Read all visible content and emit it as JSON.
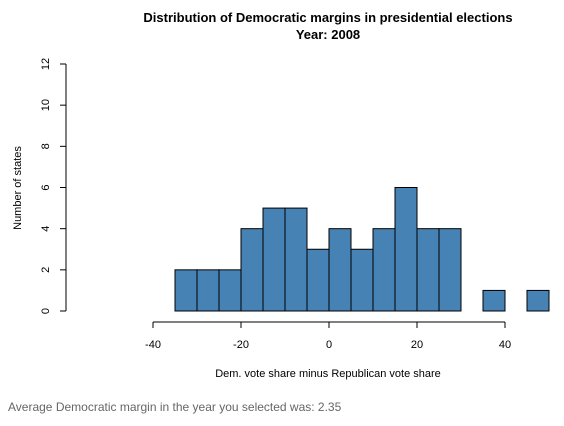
{
  "chart_data": {
    "type": "bar",
    "title": "Distribution of Democratic margins in presidential elections",
    "subtitle": "Year:  2008",
    "xlabel": "Dem. vote share minus Republican vote share",
    "ylabel": "Number of states",
    "xlim": [
      -40,
      50
    ],
    "ylim": [
      0,
      12
    ],
    "xticks": [
      -40,
      -20,
      0,
      20,
      40
    ],
    "yticks": [
      0,
      2,
      4,
      6,
      8,
      10,
      12
    ],
    "bin_width": 5,
    "bins": [
      {
        "start": -35,
        "end": -30,
        "count": 2
      },
      {
        "start": -30,
        "end": -25,
        "count": 2
      },
      {
        "start": -25,
        "end": -20,
        "count": 2
      },
      {
        "start": -20,
        "end": -15,
        "count": 4
      },
      {
        "start": -15,
        "end": -10,
        "count": 5
      },
      {
        "start": -10,
        "end": -5,
        "count": 5
      },
      {
        "start": -5,
        "end": 0,
        "count": 3
      },
      {
        "start": 0,
        "end": 5,
        "count": 4
      },
      {
        "start": 5,
        "end": 10,
        "count": 3
      },
      {
        "start": 10,
        "end": 15,
        "count": 4
      },
      {
        "start": 15,
        "end": 20,
        "count": 6
      },
      {
        "start": 20,
        "end": 25,
        "count": 4
      },
      {
        "start": 25,
        "end": 30,
        "count": 4
      },
      {
        "start": 30,
        "end": 35,
        "count": 0
      },
      {
        "start": 35,
        "end": 40,
        "count": 1
      },
      {
        "start": 40,
        "end": 45,
        "count": 0
      },
      {
        "start": 45,
        "end": 50,
        "count": 1
      }
    ],
    "bar_color": "#4682b4",
    "bar_edge_color": "#000000",
    "grid": false,
    "legend": "none"
  },
  "footer": {
    "text": "Average Democratic margin in the year you selected was: 2.35"
  }
}
